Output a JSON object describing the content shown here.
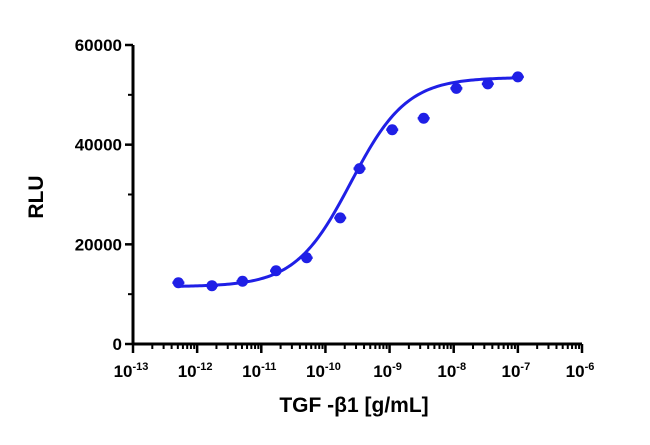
{
  "chart_data": {
    "type": "scatter",
    "title": "",
    "xlabel": "TGF -β1 [g/mL]",
    "ylabel": "RLU",
    "x_scale": "log",
    "xlim": [
      1e-13,
      1e-06
    ],
    "ylim": [
      0,
      60000
    ],
    "y_ticks": [
      0,
      20000,
      40000,
      60000
    ],
    "y_tick_labels": [
      "0",
      "20000",
      "40000",
      "60000"
    ],
    "x_tick_labels": [
      {
        "base": "10",
        "exp": "-13"
      },
      {
        "base": "10",
        "exp": "-12"
      },
      {
        "base": "10",
        "exp": "-11"
      },
      {
        "base": "10",
        "exp": "-10"
      },
      {
        "base": "10",
        "exp": "-9"
      },
      {
        "base": "10",
        "exp": "-8"
      },
      {
        "base": "10",
        "exp": "-7"
      },
      {
        "base": "10",
        "exp": "-6"
      }
    ],
    "grid": false,
    "color": "#1f1fe6",
    "series": [
      {
        "points": [
          {
            "x": 5.1e-13,
            "y": 12300
          },
          {
            "x": 1.7e-12,
            "y": 11700
          },
          {
            "x": 5.1e-12,
            "y": 12600
          },
          {
            "x": 1.7e-11,
            "y": 14700
          },
          {
            "x": 5.1e-11,
            "y": 17300
          },
          {
            "x": 1.7e-10,
            "y": 25300
          },
          {
            "x": 3.4e-10,
            "y": 35200
          },
          {
            "x": 1.1e-09,
            "y": 43000
          },
          {
            "x": 3.4e-09,
            "y": 45300
          },
          {
            "x": 1.1e-08,
            "y": 51300
          },
          {
            "x": 3.4e-08,
            "y": 52200
          },
          {
            "x": 1e-07,
            "y": 53600
          }
        ],
        "fit": {
          "model": "4PL",
          "bottom": 11500,
          "top": 53500,
          "log_ec50": -9.6,
          "hill": 1
        }
      }
    ]
  }
}
